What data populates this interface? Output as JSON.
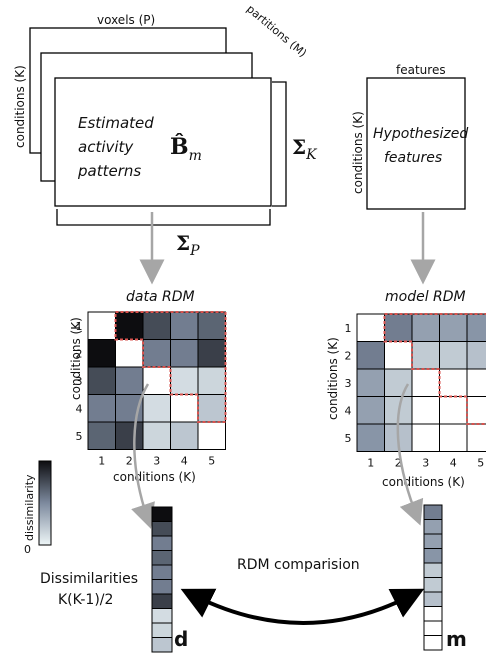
{
  "left_stack": {
    "top_label": "voxels (P)",
    "side_label": "conditions (K)",
    "depth_label": "partitions (M)",
    "front_line1": "Estimated",
    "front_line2": "activity",
    "front_line3": "patterns",
    "symbol": "B̂",
    "symbol_sub": "m",
    "sigma_k": "Σ",
    "sigma_k_sub": "K",
    "sigma_p": "Σ",
    "sigma_p_sub": "P"
  },
  "right_box": {
    "top_label": "features",
    "side_label": "conditions (K)",
    "line1": "Hypothesized",
    "line2": "features"
  },
  "data_rdm": {
    "title": "data RDM",
    "xlabel": "conditions (K)",
    "ylabel": "conditions (K)",
    "ticks": [
      "1",
      "2",
      "3",
      "4",
      "5"
    ],
    "dissimilarity": [
      [
        0.0,
        1.0,
        0.75,
        0.55,
        0.65
      ],
      [
        1.0,
        0.0,
        0.55,
        0.55,
        0.8
      ],
      [
        0.75,
        0.55,
        0.0,
        0.12,
        0.15
      ],
      [
        0.55,
        0.55,
        0.12,
        0.0,
        0.22
      ],
      [
        0.65,
        0.8,
        0.15,
        0.22,
        0.0
      ]
    ]
  },
  "model_rdm": {
    "title": "model RDM",
    "xlabel": "conditions (K)",
    "ylabel": "conditions (K)",
    "ticks": [
      "1",
      "2",
      "3",
      "4",
      "5"
    ],
    "dissimilarity": [
      [
        0.0,
        0.55,
        0.4,
        0.4,
        0.45
      ],
      [
        0.55,
        0.0,
        0.2,
        0.2,
        0.25
      ],
      [
        0.4,
        0.2,
        0.0,
        0.0,
        0.0
      ],
      [
        0.4,
        0.2,
        0.0,
        0.0,
        0.0
      ],
      [
        0.45,
        0.25,
        0.0,
        0.0,
        0.0
      ]
    ]
  },
  "colorbar": {
    "label": "dissimilarity",
    "zero": "0"
  },
  "vectors": {
    "d_label": "d",
    "m_label": "m",
    "d_values": [
      1.0,
      0.75,
      0.55,
      0.65,
      0.55,
      0.55,
      0.8,
      0.12,
      0.15,
      0.22
    ],
    "m_values": [
      0.55,
      0.4,
      0.4,
      0.45,
      0.2,
      0.2,
      0.25,
      0.0,
      0.0,
      0.0
    ],
    "caption_line1": "Dissimilarities",
    "caption_line2": "K(K-1)/2",
    "comparison_label": "RDM comparision"
  },
  "colors": {
    "low": "#eef6f7",
    "high": "#0d0d10",
    "highlight": "#d9534f"
  }
}
